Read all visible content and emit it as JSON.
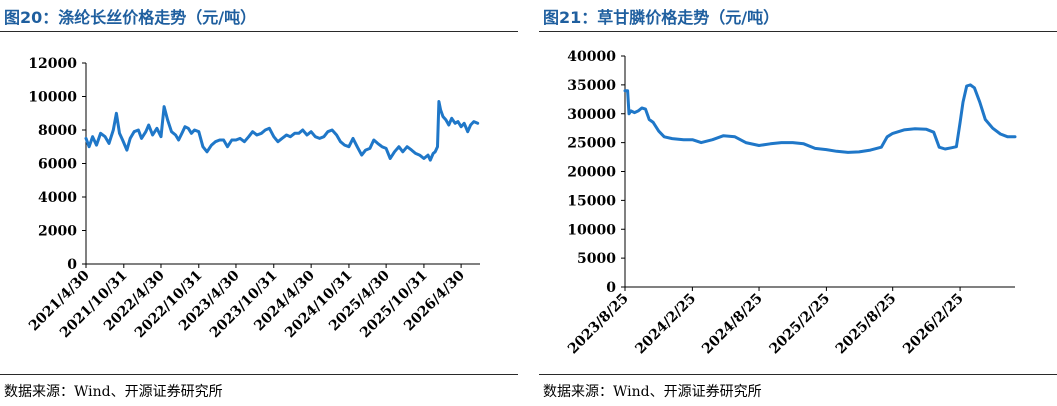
{
  "chart_data": [
    {
      "type": "line",
      "title": "图20：涤纶长丝价格走势（元/吨）",
      "source": "数据来源：Wind、开源证券研究所",
      "ylim": [
        0,
        12000
      ],
      "yticks": [
        "0",
        "2000",
        "4000",
        "6000",
        "8000",
        "10000",
        "12000"
      ],
      "xticks": [
        "2021/4/30",
        "2021/10/31",
        "2022/4/30",
        "2022/10/31",
        "2023/4/30",
        "2023/10/31",
        "2024/4/30",
        "2024/10/31",
        "2025/4/30",
        "2025/10/31",
        "2026/4/30"
      ],
      "x_range": [
        "2021/4/30",
        "2026/7/31"
      ],
      "color": "#1f77c8",
      "series": [
        {
          "x": [
            "2021/4/30",
            "2021/5/15",
            "2021/6/1",
            "2021/6/20",
            "2021/7/10",
            "2021/8/1",
            "2021/8/20",
            "2021/9/10",
            "2021/9/25",
            "2021/10/10",
            "2021/10/25",
            "2021/11/15",
            "2021/12/1",
            "2021/12/20",
            "2022/1/10",
            "2022/1/25",
            "2022/2/15",
            "2022/3/1",
            "2022/3/20",
            "2022/4/10",
            "2022/4/30",
            "2022/5/15",
            "2022/6/1",
            "2022/6/20",
            "2022/7/10",
            "2022/7/25",
            "2022/8/10",
            "2022/8/25",
            "2022/9/10",
            "2022/9/25",
            "2022/10/10",
            "2022/10/31",
            "2022/11/20",
            "2022/12/10",
            "2023/1/1",
            "2023/1/20",
            "2023/2/10",
            "2023/3/1",
            "2023/3/20",
            "2023/4/10",
            "2023/4/30",
            "2023/5/20",
            "2023/6/10",
            "2023/7/1",
            "2023/7/20",
            "2023/8/10",
            "2023/9/1",
            "2023/9/20",
            "2023/10/10",
            "2023/10/31",
            "2023/11/20",
            "2023/12/10",
            "2024/1/1",
            "2024/1/20",
            "2024/2/10",
            "2024/3/1",
            "2024/3/20",
            "2024/4/10",
            "2024/4/30",
            "2024/5/20",
            "2024/6/10",
            "2024/7/1",
            "2024/7/20",
            "2024/8/10",
            "2024/9/1",
            "2024/9/20",
            "2024/10/10",
            "2024/10/31",
            "2024/11/20",
            "2024/12/10",
            "2025/1/1",
            "2025/1/20",
            "2025/2/10",
            "2025/3/1",
            "2025/3/20",
            "2025/4/10",
            "2025/4/30",
            "2025/5/20",
            "2025/6/10",
            "2025/7/1",
            "2025/7/20",
            "2025/8/10",
            "2025/9/1",
            "2025/9/20",
            "2025/10/10",
            "2025/10/31",
            "2025/11/20",
            "2025/12/1",
            "2025/12/15",
            "2025/12/25",
            "2026/1/5",
            "2026/1/12",
            "2026/1/20",
            "2026/2/1",
            "2026/2/15",
            "2026/3/1",
            "2026/3/15",
            "2026/4/1",
            "2026/4/15",
            "2026/4/30",
            "2026/5/15",
            "2026/6/1",
            "2026/6/15",
            "2026/7/1",
            "2026/7/20"
          ],
          "y": [
            7500,
            7000,
            7600,
            7100,
            7800,
            7600,
            7200,
            8000,
            9000,
            7800,
            7400,
            6800,
            7500,
            7900,
            8000,
            7500,
            7900,
            8300,
            7700,
            8100,
            7600,
            9400,
            8600,
            7900,
            7700,
            7400,
            7800,
            8200,
            8100,
            7800,
            8000,
            7900,
            7000,
            6700,
            7100,
            7300,
            7400,
            7400,
            7000,
            7400,
            7400,
            7500,
            7300,
            7600,
            7900,
            7700,
            7800,
            8000,
            8100,
            7600,
            7300,
            7500,
            7700,
            7600,
            7800,
            7800,
            8000,
            7700,
            7900,
            7600,
            7500,
            7600,
            7900,
            8000,
            7700,
            7300,
            7100,
            7000,
            7500,
            7000,
            6500,
            6800,
            6900,
            7400,
            7200,
            7000,
            6900,
            6300,
            6700,
            7000,
            6700,
            7000,
            6800,
            6600,
            6500,
            6300,
            6500,
            6200,
            6600,
            6700,
            7000,
            9700,
            9200,
            8800,
            8600,
            8300,
            8700,
            8400,
            8500,
            8200,
            8400,
            7900,
            8300,
            8500,
            8400
          ]
        }
      ]
    },
    {
      "type": "line",
      "title": "图21：草甘膦价格走势（元/吨）",
      "source": "数据来源：Wind、开源证券研究所",
      "ylim": [
        0,
        40000
      ],
      "yticks": [
        "0",
        "5000",
        "10000",
        "15000",
        "20000",
        "25000",
        "30000",
        "35000",
        "40000"
      ],
      "xticks": [
        "2023/8/25",
        "2024/2/25",
        "2024/8/25",
        "2025/2/25",
        "2025/8/25",
        "2026/2/25"
      ],
      "x_range": [
        "2023/8/25",
        "2026/7/25"
      ],
      "color": "#1f77c8",
      "series": [
        {
          "x": [
            "2023/8/25",
            "2023/9/1",
            "2023/9/5",
            "2023/9/10",
            "2023/9/20",
            "2023/9/30",
            "2023/10/10",
            "2023/10/20",
            "2023/10/30",
            "2023/11/10",
            "2023/11/25",
            "2023/12/10",
            "2024/1/1",
            "2024/2/1",
            "2024/2/25",
            "2024/3/20",
            "2024/4/20",
            "2024/5/20",
            "2024/6/20",
            "2024/7/20",
            "2024/8/25",
            "2024/9/25",
            "2024/10/25",
            "2024/11/25",
            "2024/12/25",
            "2025/1/25",
            "2025/2/25",
            "2025/3/25",
            "2025/4/25",
            "2025/5/25",
            "2025/6/25",
            "2025/7/25",
            "2025/8/10",
            "2025/8/25",
            "2025/9/25",
            "2025/10/25",
            "2025/11/25",
            "2025/12/15",
            "2025/12/30",
            "2026/1/15",
            "2026/2/1",
            "2026/2/15",
            "2026/2/25",
            "2026/3/5",
            "2026/3/15",
            "2026/3/25",
            "2026/4/5",
            "2026/4/20",
            "2026/5/5",
            "2026/5/25",
            "2026/6/15",
            "2026/7/5",
            "2026/7/25"
          ],
          "y": [
            34000,
            34000,
            30000,
            30500,
            30200,
            30500,
            31000,
            30800,
            29000,
            28500,
            27000,
            26000,
            25700,
            25500,
            25500,
            25000,
            25500,
            26200,
            26000,
            25000,
            24500,
            24800,
            25000,
            25000,
            24800,
            24000,
            23800,
            23500,
            23300,
            23400,
            23700,
            24200,
            26000,
            26600,
            27200,
            27400,
            27300,
            26800,
            24200,
            23900,
            24100,
            24300,
            28500,
            32000,
            34800,
            35000,
            34500,
            32000,
            29000,
            27500,
            26500,
            26000,
            26000
          ]
        }
      ]
    }
  ]
}
